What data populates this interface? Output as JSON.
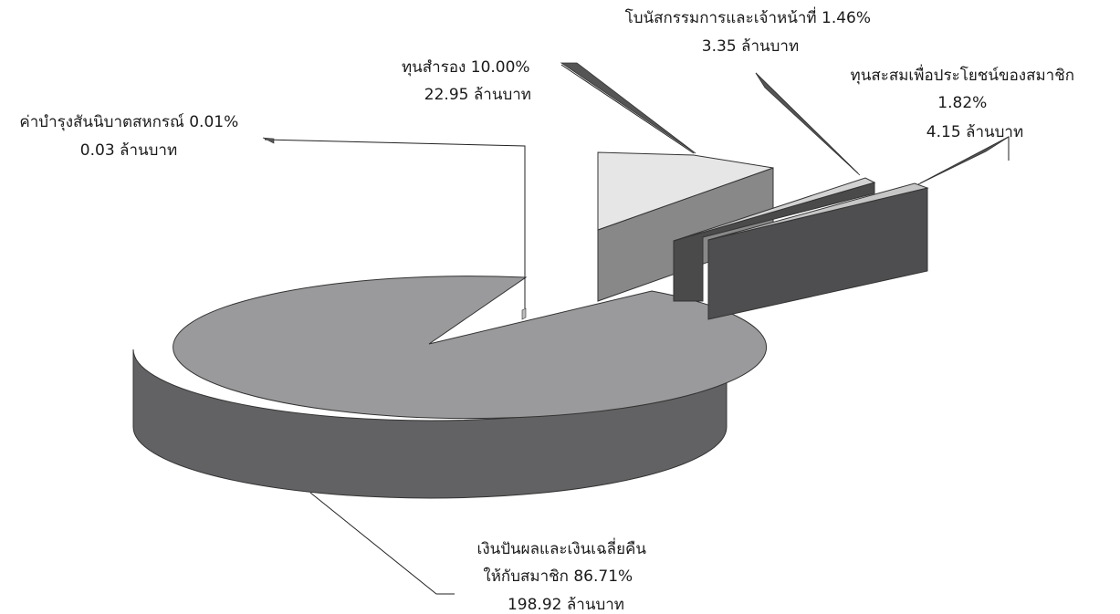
{
  "chart_data": {
    "type": "pie",
    "style": "3d-exploded",
    "unit": "ล้านบาท",
    "slices": [
      {
        "name": "เงินปันผลและเงินเฉลี่ยคืนให้กับสมาชิก",
        "percent": 86.71,
        "value": 198.92,
        "color": "#9a9a9c",
        "label_lines": [
          "เงินปันผลและเงินเฉลี่ยคืน",
          "ให้กับสมาชิก 86.71%",
          "198.92 ล้านบาท"
        ]
      },
      {
        "name": "ค่าบำรุงสันนิบาตสหกรณ์",
        "percent": 0.01,
        "value": 0.03,
        "color": "#bbbbbb",
        "label_lines": [
          "ค่าบำรุงสันนิบาตสหกรณ์ 0.01%",
          "0.03 ล้านบาท"
        ]
      },
      {
        "name": "ทุนสำรอง",
        "percent": 10.0,
        "value": 22.95,
        "color": "#e6e6e6",
        "label_lines": [
          "ทุนสำรอง 10.00%",
          "22.95 ล้านบาท"
        ]
      },
      {
        "name": "โบนัสกรรมการและเจ้าหน้าที่",
        "percent": 1.46,
        "value": 3.35,
        "color": "#d2d2d2",
        "label_lines": [
          "โบนัสกรรมการและเจ้าหน้าที่ 1.46%",
          "3.35 ล้านบาท"
        ]
      },
      {
        "name": "ทุนสะสมเพื่อประโยชน์ของสมาชิก",
        "percent": 1.82,
        "value": 4.15,
        "color": "#c6c6c6",
        "label_lines": [
          "ทุนสะสมเพื่อประโยชน์ของสมาชิก",
          "1.82%",
          "4.15 ล้านบาท"
        ]
      }
    ]
  }
}
